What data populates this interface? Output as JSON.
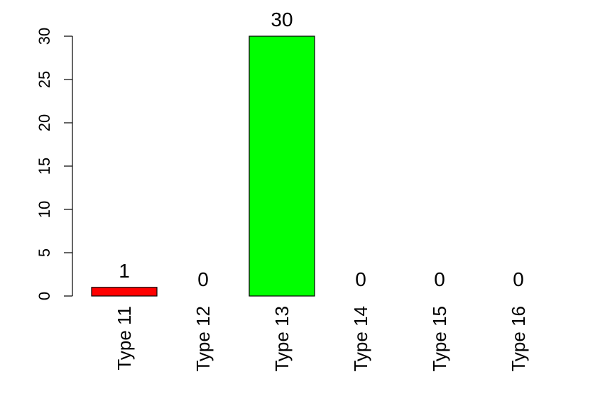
{
  "chart_data": {
    "type": "bar",
    "title": "",
    "xlabel": "",
    "ylabel": "",
    "categories": [
      "Type 11",
      "Type 12",
      "Type 13",
      "Type 14",
      "Type 15",
      "Type 16"
    ],
    "values": [
      1,
      0,
      30,
      0,
      0,
      0
    ],
    "data_labels": [
      "1",
      "0",
      "30",
      "0",
      "0",
      "0"
    ],
    "bar_colors": [
      "#ff0000",
      "#ffffff",
      "#00ff00",
      "#ffffff",
      "#ffffff",
      "#ffffff"
    ],
    "ylim": [
      0,
      30
    ],
    "yticks": [
      0,
      5,
      10,
      15,
      20,
      25,
      30
    ],
    "ytick_labels": [
      "0",
      "5",
      "10",
      "15",
      "20",
      "25",
      "30"
    ],
    "grid": false,
    "legend": "none"
  }
}
